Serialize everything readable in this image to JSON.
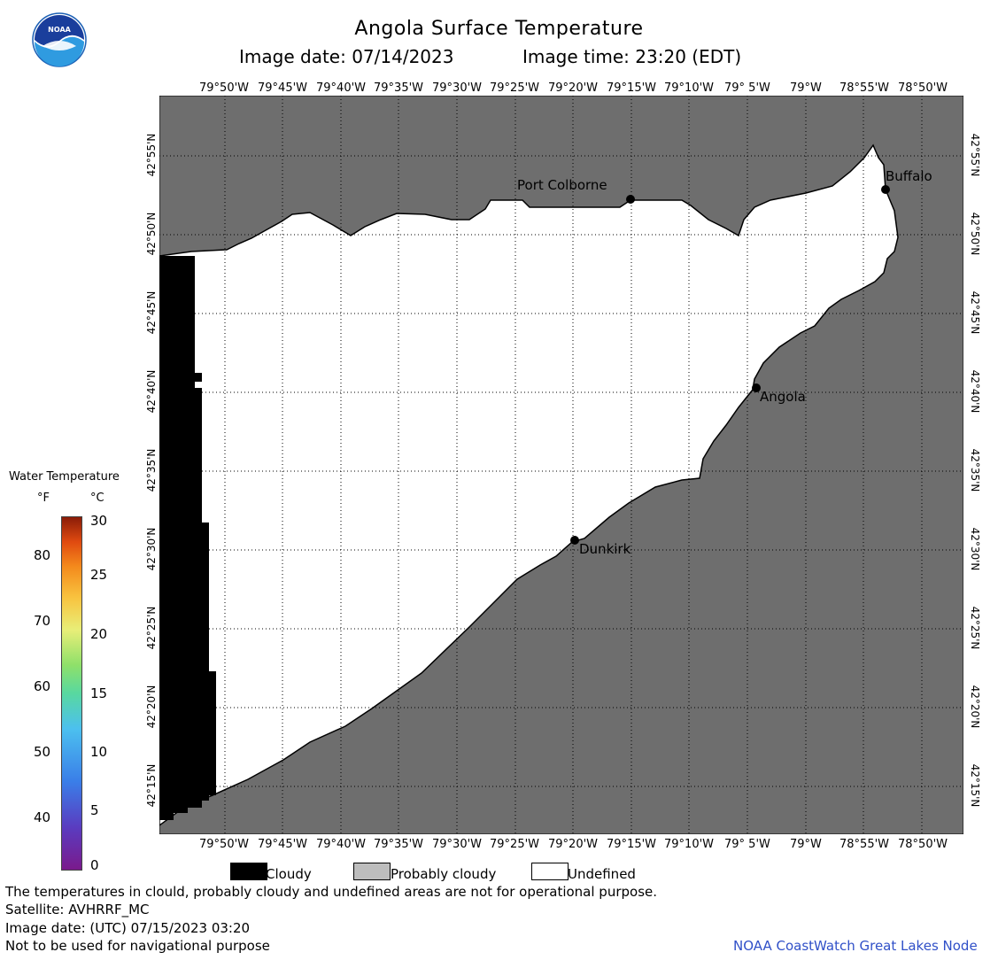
{
  "title": "Angola Surface Temperature",
  "image_date_label": "Image date: 07/14/2023",
  "image_time_label": "Image time: 23:20 (EDT)",
  "logo_text": "NOAA",
  "lon_labels": [
    "79°50'W",
    "79°45'W",
    "79°40'W",
    "79°35'W",
    "79°30'W",
    "79°25'W",
    "79°20'W",
    "79°15'W",
    "79°10'W",
    "79° 5'W",
    "79°W",
    "78°55'W",
    "78°50'W"
  ],
  "lat_labels": [
    "42°55'N",
    "42°50'N",
    "42°45'N",
    "42°40'N",
    "42°35'N",
    "42°30'N",
    "42°25'N",
    "42°20'N",
    "42°15'N"
  ],
  "places": {
    "port_colborne": "Port Colborne",
    "buffalo": "Buffalo",
    "angola": "Angola",
    "dunkirk": "Dunkirk"
  },
  "scale": {
    "title": "Water Temperature",
    "unit_f": "°F",
    "unit_c": "°C",
    "f_ticks": [
      "80",
      "70",
      "60",
      "50",
      "40"
    ],
    "c_ticks": [
      "30",
      "25",
      "20",
      "15",
      "10",
      "5",
      "0"
    ]
  },
  "legend": {
    "cloudy": "Cloudy",
    "probably_cloudy": "Probably cloudy",
    "undefined": "Undefined"
  },
  "footer": {
    "disclaimer": "The temperatures in clould, probably cloudy and undefined areas are not for operational purpose.",
    "satellite": "Satellite: AVHRRF_MC",
    "utc_date": "Image date: (UTC) 07/15/2023  03:20",
    "nav_warning": "Not to be used for navigational purpose",
    "credit": "NOAA CoastWatch Great Lakes Node"
  },
  "colors": {
    "land": "#6e6e6e",
    "lake": "#ffffff",
    "cloud": "#000000",
    "probably_cloudy": "#bdbdbd",
    "credit": "#3050c8"
  }
}
